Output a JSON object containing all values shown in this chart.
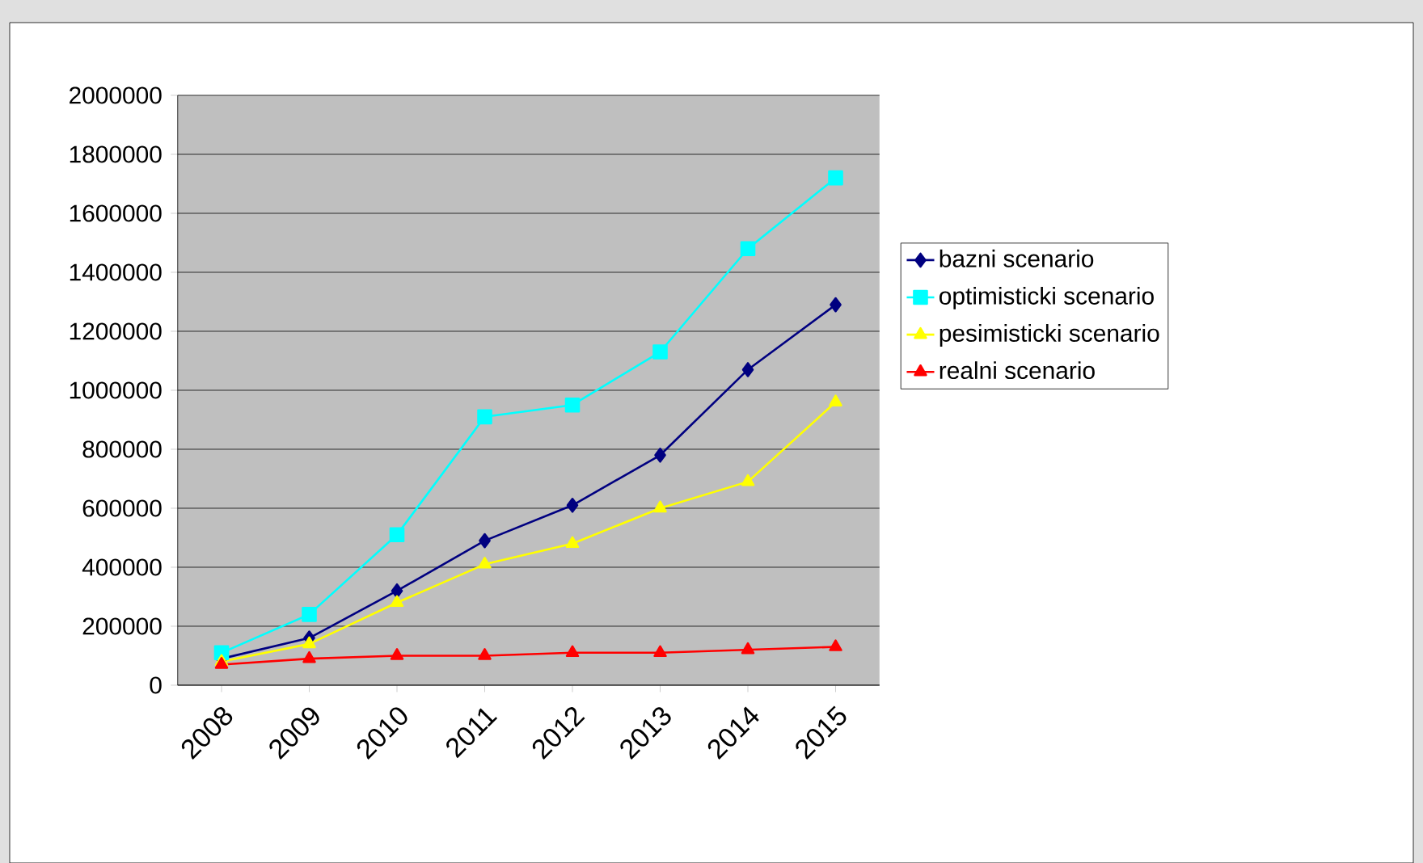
{
  "chart_data": {
    "type": "line",
    "categories": [
      "2008",
      "2009",
      "2010",
      "2011",
      "2012",
      "2013",
      "2014",
      "2015"
    ],
    "series": [
      {
        "name": "bazni scenario",
        "color": "#000080",
        "marker": "diamond",
        "values": [
          90000,
          160000,
          320000,
          490000,
          610000,
          780000,
          1070000,
          1290000
        ]
      },
      {
        "name": "optimisticki scenario",
        "color": "#00ffff",
        "marker": "square",
        "values": [
          110000,
          240000,
          510000,
          910000,
          950000,
          1130000,
          1480000,
          1720000
        ]
      },
      {
        "name": "pesimisticki scenario",
        "color": "#ffff00",
        "marker": "triangle",
        "values": [
          80000,
          140000,
          280000,
          410000,
          480000,
          600000,
          690000,
          960000
        ]
      },
      {
        "name": "realni scenario",
        "color": "#ff0000",
        "marker": "triangle",
        "values": [
          70000,
          90000,
          100000,
          100000,
          110000,
          110000,
          120000,
          130000
        ]
      }
    ],
    "ylim": [
      0,
      2000000
    ],
    "yticks": [
      0,
      200000,
      400000,
      600000,
      800000,
      1000000,
      1200000,
      1400000,
      1600000,
      1800000,
      2000000
    ],
    "grid": "y",
    "legend": "right",
    "line_style": "solid"
  }
}
